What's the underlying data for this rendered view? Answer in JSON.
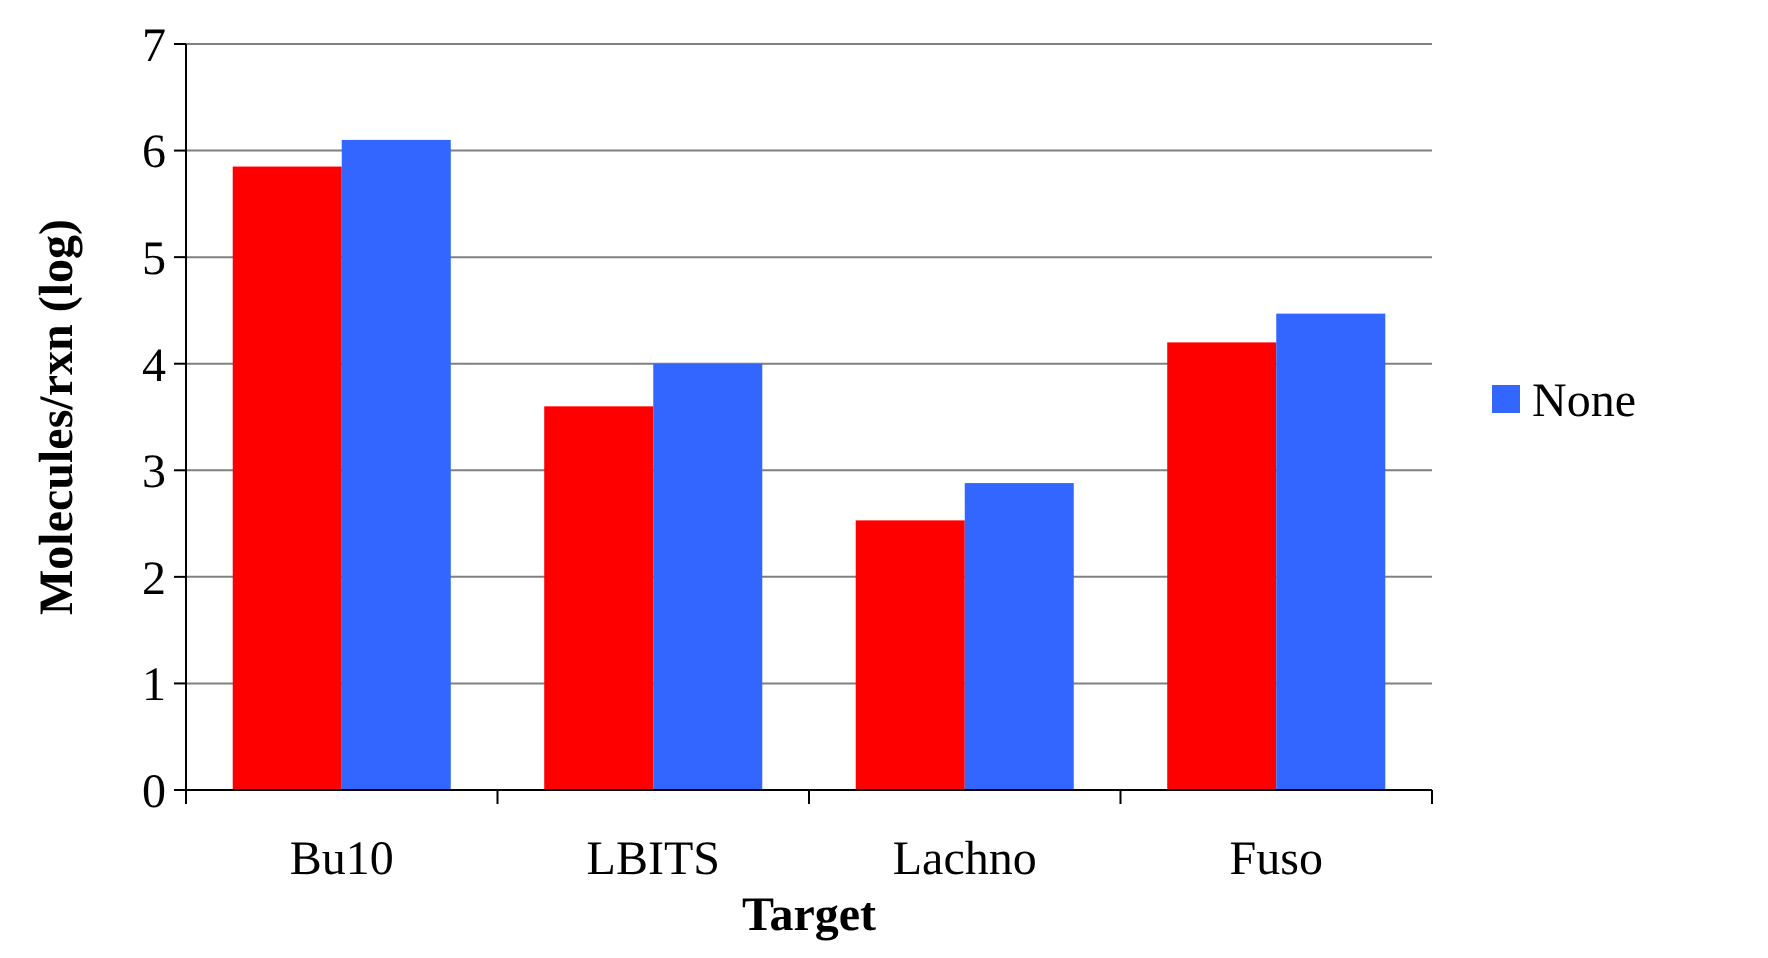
{
  "chart_data": {
    "type": "bar",
    "xlabel": "Target",
    "ylabel": "Molecules/rxn (log)",
    "categories": [
      "Bu10",
      "LBITS",
      "Lachno",
      "Fuso"
    ],
    "series": [
      {
        "color": "#ff0000",
        "values": [
          5.85,
          3.6,
          2.53,
          4.2
        ]
      },
      {
        "name": "None",
        "color": "#3366ff",
        "values": [
          6.1,
          4.0,
          2.88,
          4.47
        ]
      }
    ],
    "ylim": [
      0,
      7
    ],
    "yticks": [
      0,
      1,
      2,
      3,
      4,
      5,
      6,
      7
    ],
    "grid": "y",
    "legend": "right"
  }
}
